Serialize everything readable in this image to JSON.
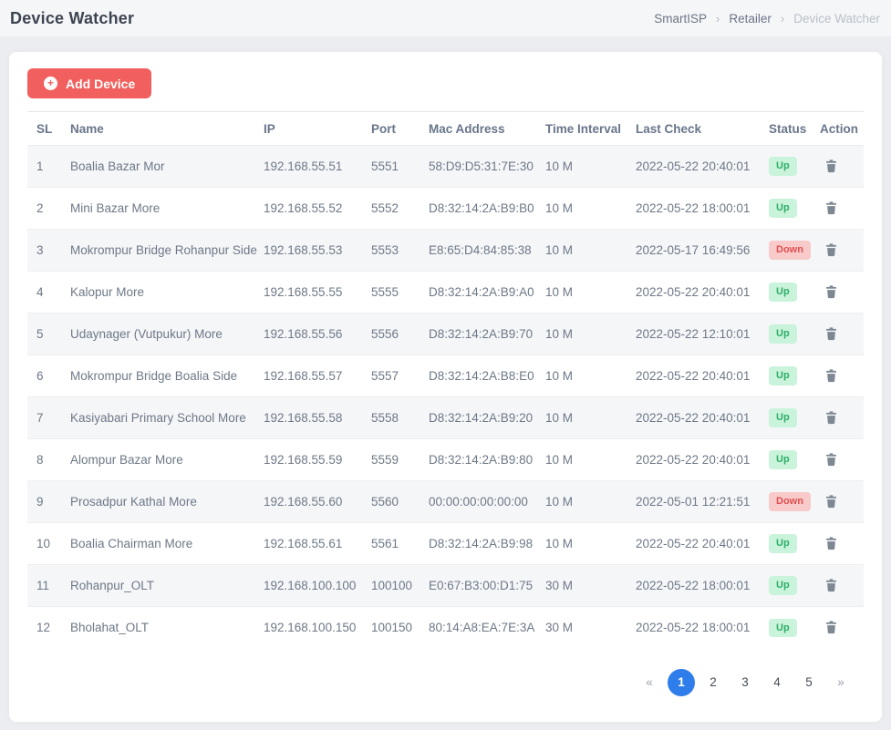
{
  "header": {
    "title": "Device Watcher",
    "breadcrumb": {
      "items": [
        "SmartISP",
        "Retailer",
        "Device Watcher"
      ],
      "separator": "›"
    }
  },
  "toolbar": {
    "add_device_label": "Add Device",
    "add_icon": "+"
  },
  "table": {
    "columns": [
      "SL",
      "Name",
      "IP",
      "Port",
      "Mac Address",
      "Time Interval",
      "Last Check",
      "Status",
      "Action"
    ],
    "rows": [
      {
        "sl": "1",
        "name": "Boalia Bazar Mor",
        "ip": "192.168.55.51",
        "port": "5551",
        "mac": "58:D9:D5:31:7E:30",
        "interval": "10 M",
        "last_check": "2022-05-22 20:40:01",
        "status": "Up"
      },
      {
        "sl": "2",
        "name": "Mini Bazar More",
        "ip": "192.168.55.52",
        "port": "5552",
        "mac": "D8:32:14:2A:B9:B0",
        "interval": "10 M",
        "last_check": "2022-05-22 18:00:01",
        "status": "Up"
      },
      {
        "sl": "3",
        "name": "Mokrompur Bridge Rohanpur Side",
        "ip": "192.168.55.53",
        "port": "5553",
        "mac": "E8:65:D4:84:85:38",
        "interval": "10 M",
        "last_check": "2022-05-17 16:49:56",
        "status": "Down"
      },
      {
        "sl": "4",
        "name": "Kalopur More",
        "ip": "192.168.55.55",
        "port": "5555",
        "mac": "D8:32:14:2A:B9:A0",
        "interval": "10 M",
        "last_check": "2022-05-22 20:40:01",
        "status": "Up"
      },
      {
        "sl": "5",
        "name": "Udaynager (Vutpukur) More",
        "ip": "192.168.55.56",
        "port": "5556",
        "mac": "D8:32:14:2A:B9:70",
        "interval": "10 M",
        "last_check": "2022-05-22 12:10:01",
        "status": "Up"
      },
      {
        "sl": "6",
        "name": "Mokrompur Bridge Boalia Side",
        "ip": "192.168.55.57",
        "port": "5557",
        "mac": "D8:32:14:2A:B8:E0",
        "interval": "10 M",
        "last_check": "2022-05-22 20:40:01",
        "status": "Up"
      },
      {
        "sl": "7",
        "name": "Kasiyabari Primary School More",
        "ip": "192.168.55.58",
        "port": "5558",
        "mac": "D8:32:14:2A:B9:20",
        "interval": "10 M",
        "last_check": "2022-05-22 20:40:01",
        "status": "Up"
      },
      {
        "sl": "8",
        "name": "Alompur Bazar More",
        "ip": "192.168.55.59",
        "port": "5559",
        "mac": "D8:32:14:2A:B9:80",
        "interval": "10 M",
        "last_check": "2022-05-22 20:40:01",
        "status": "Up"
      },
      {
        "sl": "9",
        "name": "Prosadpur Kathal More",
        "ip": "192.168.55.60",
        "port": "5560",
        "mac": "00:00:00:00:00:00",
        "interval": "10 M",
        "last_check": "2022-05-01 12:21:51",
        "status": "Down"
      },
      {
        "sl": "10",
        "name": "Boalia Chairman More",
        "ip": "192.168.55.61",
        "port": "5561",
        "mac": "D8:32:14:2A:B9:98",
        "interval": "10 M",
        "last_check": "2022-05-22 20:40:01",
        "status": "Up"
      },
      {
        "sl": "11",
        "name": "Rohanpur_OLT",
        "ip": "192.168.100.100",
        "port": "100100",
        "mac": "E0:67:B3:00:D1:75",
        "interval": "30 M",
        "last_check": "2022-05-22 18:00:01",
        "status": "Up"
      },
      {
        "sl": "12",
        "name": "Bholahat_OLT",
        "ip": "192.168.100.150",
        "port": "100150",
        "mac": "80:14:A8:EA:7E:3A",
        "interval": "30 M",
        "last_check": "2022-05-22 18:00:01",
        "status": "Up"
      }
    ]
  },
  "pagination": {
    "prev_label": "«",
    "next_label": "»",
    "pages": [
      "1",
      "2",
      "3",
      "4",
      "5"
    ],
    "active_page": "1"
  },
  "colors": {
    "accent_button": "#f1605e",
    "status_up_bg": "#c9f3db",
    "status_up_text": "#2fae66",
    "status_down_bg": "#f8caca",
    "status_down_text": "#e04f4f",
    "pagination_active": "#2e7deb"
  }
}
